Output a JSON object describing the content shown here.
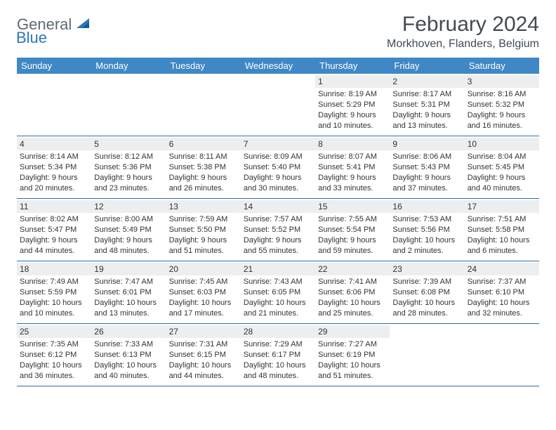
{
  "logo": {
    "text1": "General",
    "text2": "Blue",
    "shape_color": "#2d77b9"
  },
  "title": "February 2024",
  "location": "Morkhoven, Flanders, Belgium",
  "colors": {
    "header_bg": "#3f88c5",
    "header_text": "#ffffff",
    "row_border": "#2f6da3",
    "date_bar_bg": "#eceeef",
    "body_text": "#333333",
    "title_text": "#414b54"
  },
  "day_headers": [
    "Sunday",
    "Monday",
    "Tuesday",
    "Wednesday",
    "Thursday",
    "Friday",
    "Saturday"
  ],
  "weeks": [
    [
      null,
      null,
      null,
      null,
      {
        "date": "1",
        "sunrise": "Sunrise: 8:19 AM",
        "sunset": "Sunset: 5:29 PM",
        "daylight1": "Daylight: 9 hours",
        "daylight2": "and 10 minutes."
      },
      {
        "date": "2",
        "sunrise": "Sunrise: 8:17 AM",
        "sunset": "Sunset: 5:31 PM",
        "daylight1": "Daylight: 9 hours",
        "daylight2": "and 13 minutes."
      },
      {
        "date": "3",
        "sunrise": "Sunrise: 8:16 AM",
        "sunset": "Sunset: 5:32 PM",
        "daylight1": "Daylight: 9 hours",
        "daylight2": "and 16 minutes."
      }
    ],
    [
      {
        "date": "4",
        "sunrise": "Sunrise: 8:14 AM",
        "sunset": "Sunset: 5:34 PM",
        "daylight1": "Daylight: 9 hours",
        "daylight2": "and 20 minutes."
      },
      {
        "date": "5",
        "sunrise": "Sunrise: 8:12 AM",
        "sunset": "Sunset: 5:36 PM",
        "daylight1": "Daylight: 9 hours",
        "daylight2": "and 23 minutes."
      },
      {
        "date": "6",
        "sunrise": "Sunrise: 8:11 AM",
        "sunset": "Sunset: 5:38 PM",
        "daylight1": "Daylight: 9 hours",
        "daylight2": "and 26 minutes."
      },
      {
        "date": "7",
        "sunrise": "Sunrise: 8:09 AM",
        "sunset": "Sunset: 5:40 PM",
        "daylight1": "Daylight: 9 hours",
        "daylight2": "and 30 minutes."
      },
      {
        "date": "8",
        "sunrise": "Sunrise: 8:07 AM",
        "sunset": "Sunset: 5:41 PM",
        "daylight1": "Daylight: 9 hours",
        "daylight2": "and 33 minutes."
      },
      {
        "date": "9",
        "sunrise": "Sunrise: 8:06 AM",
        "sunset": "Sunset: 5:43 PM",
        "daylight1": "Daylight: 9 hours",
        "daylight2": "and 37 minutes."
      },
      {
        "date": "10",
        "sunrise": "Sunrise: 8:04 AM",
        "sunset": "Sunset: 5:45 PM",
        "daylight1": "Daylight: 9 hours",
        "daylight2": "and 40 minutes."
      }
    ],
    [
      {
        "date": "11",
        "sunrise": "Sunrise: 8:02 AM",
        "sunset": "Sunset: 5:47 PM",
        "daylight1": "Daylight: 9 hours",
        "daylight2": "and 44 minutes."
      },
      {
        "date": "12",
        "sunrise": "Sunrise: 8:00 AM",
        "sunset": "Sunset: 5:49 PM",
        "daylight1": "Daylight: 9 hours",
        "daylight2": "and 48 minutes."
      },
      {
        "date": "13",
        "sunrise": "Sunrise: 7:59 AM",
        "sunset": "Sunset: 5:50 PM",
        "daylight1": "Daylight: 9 hours",
        "daylight2": "and 51 minutes."
      },
      {
        "date": "14",
        "sunrise": "Sunrise: 7:57 AM",
        "sunset": "Sunset: 5:52 PM",
        "daylight1": "Daylight: 9 hours",
        "daylight2": "and 55 minutes."
      },
      {
        "date": "15",
        "sunrise": "Sunrise: 7:55 AM",
        "sunset": "Sunset: 5:54 PM",
        "daylight1": "Daylight: 9 hours",
        "daylight2": "and 59 minutes."
      },
      {
        "date": "16",
        "sunrise": "Sunrise: 7:53 AM",
        "sunset": "Sunset: 5:56 PM",
        "daylight1": "Daylight: 10 hours",
        "daylight2": "and 2 minutes."
      },
      {
        "date": "17",
        "sunrise": "Sunrise: 7:51 AM",
        "sunset": "Sunset: 5:58 PM",
        "daylight1": "Daylight: 10 hours",
        "daylight2": "and 6 minutes."
      }
    ],
    [
      {
        "date": "18",
        "sunrise": "Sunrise: 7:49 AM",
        "sunset": "Sunset: 5:59 PM",
        "daylight1": "Daylight: 10 hours",
        "daylight2": "and 10 minutes."
      },
      {
        "date": "19",
        "sunrise": "Sunrise: 7:47 AM",
        "sunset": "Sunset: 6:01 PM",
        "daylight1": "Daylight: 10 hours",
        "daylight2": "and 13 minutes."
      },
      {
        "date": "20",
        "sunrise": "Sunrise: 7:45 AM",
        "sunset": "Sunset: 6:03 PM",
        "daylight1": "Daylight: 10 hours",
        "daylight2": "and 17 minutes."
      },
      {
        "date": "21",
        "sunrise": "Sunrise: 7:43 AM",
        "sunset": "Sunset: 6:05 PM",
        "daylight1": "Daylight: 10 hours",
        "daylight2": "and 21 minutes."
      },
      {
        "date": "22",
        "sunrise": "Sunrise: 7:41 AM",
        "sunset": "Sunset: 6:06 PM",
        "daylight1": "Daylight: 10 hours",
        "daylight2": "and 25 minutes."
      },
      {
        "date": "23",
        "sunrise": "Sunrise: 7:39 AM",
        "sunset": "Sunset: 6:08 PM",
        "daylight1": "Daylight: 10 hours",
        "daylight2": "and 28 minutes."
      },
      {
        "date": "24",
        "sunrise": "Sunrise: 7:37 AM",
        "sunset": "Sunset: 6:10 PM",
        "daylight1": "Daylight: 10 hours",
        "daylight2": "and 32 minutes."
      }
    ],
    [
      {
        "date": "25",
        "sunrise": "Sunrise: 7:35 AM",
        "sunset": "Sunset: 6:12 PM",
        "daylight1": "Daylight: 10 hours",
        "daylight2": "and 36 minutes."
      },
      {
        "date": "26",
        "sunrise": "Sunrise: 7:33 AM",
        "sunset": "Sunset: 6:13 PM",
        "daylight1": "Daylight: 10 hours",
        "daylight2": "and 40 minutes."
      },
      {
        "date": "27",
        "sunrise": "Sunrise: 7:31 AM",
        "sunset": "Sunset: 6:15 PM",
        "daylight1": "Daylight: 10 hours",
        "daylight2": "and 44 minutes."
      },
      {
        "date": "28",
        "sunrise": "Sunrise: 7:29 AM",
        "sunset": "Sunset: 6:17 PM",
        "daylight1": "Daylight: 10 hours",
        "daylight2": "and 48 minutes."
      },
      {
        "date": "29",
        "sunrise": "Sunrise: 7:27 AM",
        "sunset": "Sunset: 6:19 PM",
        "daylight1": "Daylight: 10 hours",
        "daylight2": "and 51 minutes."
      },
      null,
      null
    ]
  ]
}
